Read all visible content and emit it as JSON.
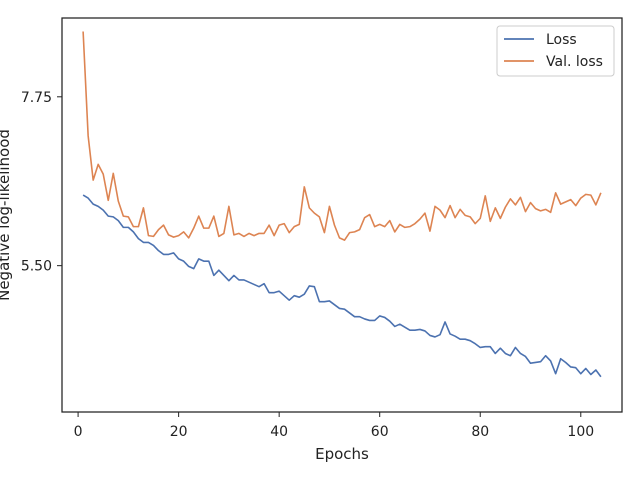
{
  "chart_data": {
    "type": "line",
    "xlabel": "Epochs",
    "ylabel": "Negative log-likelihood",
    "xlim": [
      -3.2,
      108.2
    ],
    "ylim": [
      3.55,
      8.8
    ],
    "x_ticks": [
      0,
      20,
      40,
      60,
      80,
      100
    ],
    "y_ticks": [
      5.5,
      7.75
    ],
    "legend_position": "top-right",
    "grid": false,
    "series": [
      {
        "name": "Loss",
        "color": "#4c72b0",
        "x": [
          1,
          2,
          3,
          4,
          5,
          6,
          7,
          8,
          9,
          10,
          11,
          12,
          13,
          14,
          15,
          16,
          17,
          18,
          19,
          20,
          21,
          22,
          23,
          24,
          25,
          26,
          27,
          28,
          29,
          30,
          31,
          32,
          33,
          34,
          35,
          36,
          37,
          38,
          39,
          40,
          41,
          42,
          43,
          44,
          45,
          46,
          47,
          48,
          49,
          50,
          51,
          52,
          53,
          54,
          55,
          56,
          57,
          58,
          59,
          60,
          61,
          62,
          63,
          64,
          65,
          66,
          67,
          68,
          69,
          70,
          71,
          72,
          73,
          74,
          75,
          76,
          77,
          78,
          79,
          80,
          81,
          82,
          83,
          84,
          85,
          86,
          87,
          88,
          89,
          90,
          91,
          92,
          93,
          94,
          95,
          96,
          97,
          98,
          99,
          100,
          101,
          102,
          103,
          104
        ],
        "values": [
          6.44,
          6.4,
          6.32,
          6.29,
          6.24,
          6.16,
          6.15,
          6.1,
          6.01,
          6.01,
          5.95,
          5.86,
          5.81,
          5.81,
          5.77,
          5.7,
          5.65,
          5.65,
          5.67,
          5.59,
          5.56,
          5.49,
          5.46,
          5.59,
          5.56,
          5.56,
          5.37,
          5.44,
          5.37,
          5.3,
          5.37,
          5.31,
          5.31,
          5.28,
          5.25,
          5.22,
          5.26,
          5.14,
          5.14,
          5.16,
          5.1,
          5.04,
          5.1,
          5.08,
          5.12,
          5.23,
          5.22,
          5.02,
          5.02,
          5.03,
          4.98,
          4.93,
          4.92,
          4.87,
          4.82,
          4.82,
          4.79,
          4.77,
          4.77,
          4.83,
          4.81,
          4.76,
          4.69,
          4.72,
          4.68,
          4.64,
          4.64,
          4.65,
          4.63,
          4.57,
          4.55,
          4.58,
          4.75,
          4.59,
          4.56,
          4.52,
          4.52,
          4.5,
          4.46,
          4.41,
          4.42,
          4.42,
          4.33,
          4.4,
          4.33,
          4.3,
          4.41,
          4.33,
          4.29,
          4.2,
          4.21,
          4.22,
          4.3,
          4.23,
          4.06,
          4.26,
          4.21,
          4.15,
          4.14,
          4.06,
          4.13,
          4.05,
          4.11,
          4.02
        ]
      },
      {
        "name": "Val. loss",
        "color": "#dd8452",
        "x": [
          1,
          2,
          3,
          4,
          5,
          6,
          7,
          8,
          9,
          10,
          11,
          12,
          13,
          14,
          15,
          16,
          17,
          18,
          19,
          20,
          21,
          22,
          23,
          24,
          25,
          26,
          27,
          28,
          29,
          30,
          31,
          32,
          33,
          34,
          35,
          36,
          37,
          38,
          39,
          40,
          41,
          42,
          43,
          44,
          45,
          46,
          47,
          48,
          49,
          50,
          51,
          52,
          53,
          54,
          55,
          56,
          57,
          58,
          59,
          60,
          61,
          62,
          63,
          64,
          65,
          66,
          67,
          68,
          69,
          70,
          71,
          72,
          73,
          74,
          75,
          76,
          77,
          78,
          79,
          80,
          81,
          82,
          83,
          84,
          85,
          86,
          87,
          88,
          89,
          90,
          91,
          92,
          93,
          94,
          95,
          96,
          97,
          98,
          99,
          100,
          101,
          102,
          103,
          104
        ],
        "values": [
          8.62,
          7.23,
          6.64,
          6.85,
          6.72,
          6.37,
          6.73,
          6.36,
          6.16,
          6.15,
          6.02,
          6.02,
          6.27,
          5.9,
          5.89,
          5.98,
          6.04,
          5.91,
          5.88,
          5.9,
          5.95,
          5.87,
          6.0,
          6.16,
          6.0,
          6.0,
          6.16,
          5.89,
          5.93,
          6.29,
          5.91,
          5.93,
          5.89,
          5.93,
          5.9,
          5.93,
          5.93,
          6.04,
          5.9,
          6.04,
          6.06,
          5.94,
          6.02,
          6.05,
          6.55,
          6.27,
          6.2,
          6.15,
          5.94,
          6.29,
          6.04,
          5.87,
          5.84,
          5.94,
          5.95,
          5.98,
          6.14,
          6.18,
          6.02,
          6.05,
          6.02,
          6.1,
          5.95,
          6.05,
          6.01,
          6.02,
          6.06,
          6.12,
          6.2,
          5.96,
          6.29,
          6.24,
          6.14,
          6.3,
          6.14,
          6.25,
          6.17,
          6.15,
          6.06,
          6.13,
          6.43,
          6.09,
          6.27,
          6.13,
          6.28,
          6.39,
          6.31,
          6.41,
          6.22,
          6.34,
          6.26,
          6.23,
          6.25,
          6.21,
          6.47,
          6.32,
          6.35,
          6.38,
          6.3,
          6.4,
          6.45,
          6.44,
          6.31,
          6.47
        ]
      }
    ]
  }
}
